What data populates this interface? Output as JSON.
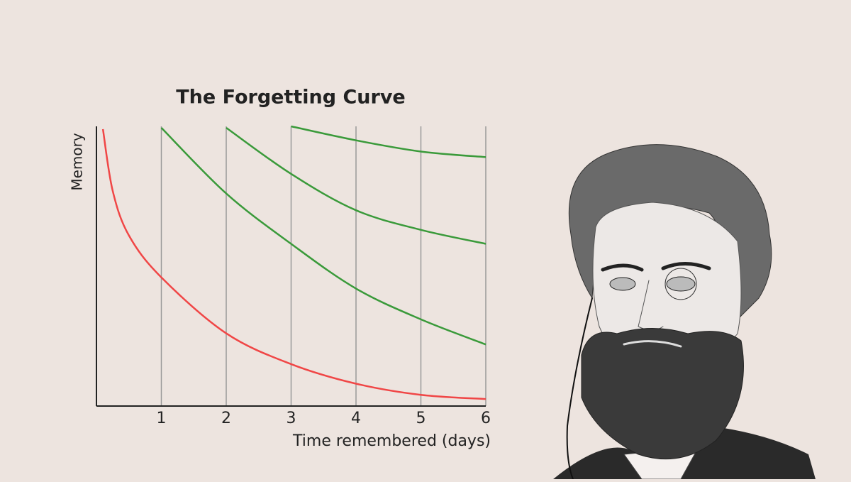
{
  "chart_data": {
    "type": "line",
    "title": "The Forgetting Curve",
    "x_label": "Time remembered (days)",
    "y_label": "Memory",
    "xlim": [
      0,
      6
    ],
    "ylim": [
      0,
      100
    ],
    "xticks": [
      1,
      2,
      3,
      4,
      5,
      6
    ],
    "grid": true,
    "series": [
      {
        "color": "#f04646",
        "x": [
          0.1,
          0.25,
          0.5,
          1,
          2,
          3,
          4,
          5,
          6
        ],
        "values": [
          99,
          77,
          61,
          46,
          26,
          15,
          8,
          4,
          2.5
        ]
      },
      {
        "color": "#3a9a3a",
        "x": [
          1,
          2,
          3,
          4,
          5,
          6
        ],
        "values": [
          99.5,
          76,
          58,
          42,
          31,
          22
        ]
      },
      {
        "color": "#3a9a3a",
        "x": [
          2,
          3,
          4,
          5,
          6
        ],
        "values": [
          99.5,
          83,
          70,
          63,
          58
        ]
      },
      {
        "color": "#3a9a3a",
        "x": [
          3,
          4,
          5,
          6
        ],
        "values": [
          100,
          95,
          91,
          89
        ]
      }
    ]
  }
}
